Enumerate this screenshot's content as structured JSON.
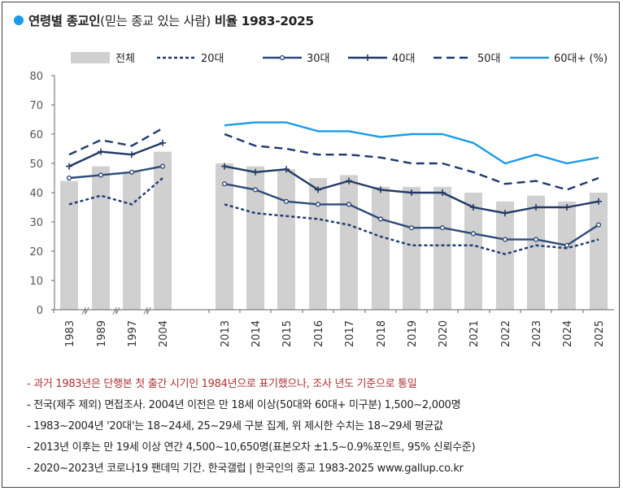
{
  "title": {
    "bold_part": "연령별 종교인",
    "paren_part": "(믿는 종교 있는 사람)",
    "tail_part": " 비율 1983-2025",
    "dot_color": "#1a9be8"
  },
  "chart_data": {
    "type": "bar+line",
    "title": "연령별 종교인(믿는 종교 있는 사람) 비율 1983-2025",
    "unit": "%",
    "xlabel": "",
    "ylabel": "",
    "ylim": [
      0,
      80
    ],
    "yticks": [
      0,
      10,
      20,
      30,
      40,
      50,
      60,
      70,
      80
    ],
    "ytick_labels": [
      "0",
      "10",
      "20",
      "30",
      "40",
      "50",
      "60",
      "70",
      "80"
    ],
    "grid": false,
    "legend_position": "top",
    "categories": [
      "1983",
      "1989",
      "1997",
      "2004",
      "2013",
      "2014",
      "2015",
      "2016",
      "2017",
      "2018",
      "2019",
      "2020",
      "2021",
      "2022",
      "2023",
      "2024",
      "2025"
    ],
    "axis_break_marks": [
      "//",
      "//",
      "//"
    ],
    "bars": {
      "name": "전체",
      "color": "#d0d0d0",
      "values": [
        44,
        49,
        47,
        54,
        50,
        49,
        48,
        45,
        46,
        42,
        42,
        42,
        40,
        37,
        39,
        37,
        40
      ]
    },
    "series": [
      {
        "name": "20대",
        "style": "dotted",
        "color": "#1f3a6e",
        "values": [
          36,
          39,
          36,
          45,
          36,
          33,
          32,
          31,
          29,
          25,
          22,
          22,
          22,
          19,
          22,
          21,
          24
        ]
      },
      {
        "name": "30대",
        "style": "solid-marker",
        "color": "#2e4b7a",
        "values": [
          45,
          46,
          47,
          49,
          43,
          41,
          37,
          36,
          36,
          31,
          28,
          28,
          26,
          24,
          24,
          22,
          29
        ]
      },
      {
        "name": "40대",
        "style": "solid-plus",
        "color": "#223a66",
        "values": [
          49,
          54,
          53,
          57,
          49,
          47,
          48,
          41,
          44,
          41,
          40,
          40,
          35,
          33,
          35,
          35,
          37
        ]
      },
      {
        "name": "50대",
        "style": "dashed",
        "color": "#1f3a6e",
        "values": [
          53,
          58,
          56,
          62,
          60,
          56,
          55,
          53,
          53,
          52,
          50,
          50,
          47,
          43,
          44,
          41,
          45
        ]
      },
      {
        "name": "60대+ (%)",
        "style": "solid",
        "color": "#1a9be8",
        "values": [
          null,
          null,
          null,
          null,
          63,
          64,
          64,
          61,
          61,
          59,
          60,
          60,
          57,
          50,
          53,
          50,
          52
        ]
      }
    ]
  },
  "notes": [
    {
      "text": "- 과거 1983년은 단행본 첫 출간 시기인 1984년으로 표기했으나, 조사 년도 기준으로 통일",
      "color": "#b03030"
    },
    {
      "text": "- 전국(제주 제외) 면접조사. 2004년 이전은 만 18세 이상(50대와 60대+ 미구분) 1,500~2,000명",
      "color": "#222222"
    },
    {
      "text": "- 1983~2004년 '20대'는 18~24세, 25~29세 구분 집계, 위 제시한 수치는 18~29세 평균값",
      "color": "#222222"
    },
    {
      "text": "- 2013년 이후는 만 19세 이상 연간 4,500~10,650명(표본오차 ±1.5~0.9%포인트, 95% 신뢰수준)",
      "color": "#222222"
    },
    {
      "text": "- 2020~2023년 코로나19 팬데믹 기간. 한국갤럽 | 한국인의 종교 1983-2025 www.gallup.co.kr",
      "color": "#222222"
    }
  ]
}
